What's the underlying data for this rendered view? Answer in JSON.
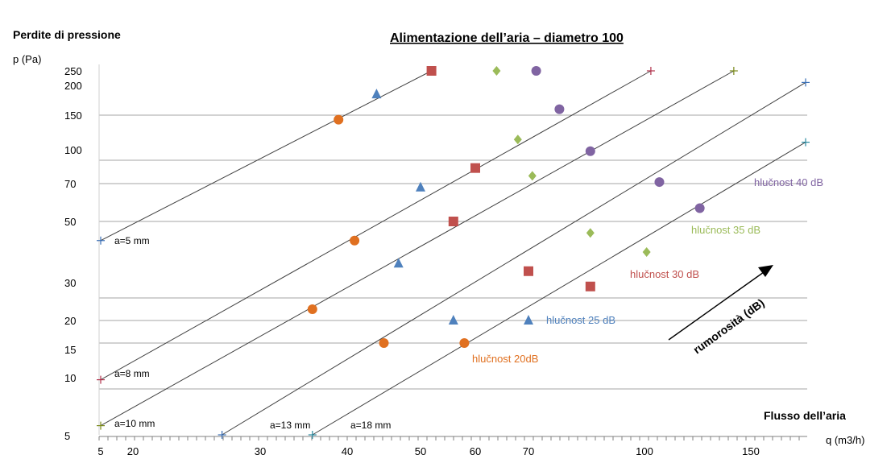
{
  "chart_data": {
    "type": "line",
    "title": "Alimentazione dell’aria – diametro 100",
    "side_title": "Perdite di pressione",
    "ylabel": "p (Pa)",
    "xlabel": "q (m3/h)",
    "x_caption": "Flusso dell’aria",
    "y_ticks": [
      "250",
      "200",
      "150",
      "100",
      "70",
      "50",
      "30",
      "20",
      "15",
      "10",
      "5"
    ],
    "x_ticks": [
      "5",
      "20",
      "30",
      "40",
      "50",
      "60",
      "70",
      "100",
      "150"
    ],
    "grid": "horizontal",
    "lines": [
      {
        "label": "a=5 mm",
        "color": "#3a6fb5",
        "start": {
          "q": 5,
          "p": 45
        },
        "end": {
          "q": 52,
          "p": 250
        }
      },
      {
        "label": "a=8 mm",
        "color": "#b0304a",
        "start": {
          "q": 5,
          "p": 11
        },
        "end": {
          "q": 103,
          "p": 250
        }
      },
      {
        "label": "a=10 mm",
        "color": "#7a8a1a",
        "start": {
          "q": 5,
          "p": 6
        },
        "end": {
          "q": 142,
          "p": 250
        }
      },
      {
        "label": "a=13 mm",
        "color": "#3a6fb5",
        "start": {
          "q": 27,
          "p": 5
        },
        "end": {
          "q": 175,
          "p": 210
        }
      },
      {
        "label": "a=18 mm",
        "color": "#2a8aa0",
        "start": {
          "q": 36,
          "p": 5
        },
        "end": {
          "q": 175,
          "p": 120
        }
      }
    ],
    "series": [
      {
        "name": "hlučnost 20dB",
        "color": "#e07020",
        "marker": "circle",
        "points": [
          {
            "q": 39,
            "p": 145
          },
          {
            "q": 41,
            "p": 45
          },
          {
            "q": 36,
            "p": 25
          },
          {
            "q": 45,
            "p": 15
          },
          {
            "q": 58,
            "p": 15
          }
        ]
      },
      {
        "name": "hlučnost 25 dB",
        "color": "#4f81bd",
        "marker": "triangle",
        "points": [
          {
            "q": 44,
            "p": 185
          },
          {
            "q": 50,
            "p": 68
          },
          {
            "q": 47,
            "p": 39
          },
          {
            "q": 56,
            "p": 20
          },
          {
            "q": 70,
            "p": 20
          }
        ]
      },
      {
        "name": "hlučnost 30 dB",
        "color": "#c0504d",
        "marker": "square",
        "points": [
          {
            "q": 52,
            "p": 250
          },
          {
            "q": 60,
            "p": 90
          },
          {
            "q": 56,
            "p": 50
          },
          {
            "q": 70,
            "p": 37
          },
          {
            "q": 86,
            "p": 33
          }
        ]
      },
      {
        "name": "hlučnost 35 dB",
        "color": "#9bbb59",
        "marker": "diamond",
        "points": [
          {
            "q": 64,
            "p": 250
          },
          {
            "q": 68,
            "p": 123
          },
          {
            "q": 71,
            "p": 80
          },
          {
            "q": 86,
            "p": 47
          },
          {
            "q": 101,
            "p": 42
          }
        ]
      },
      {
        "name": "hlučnost 40 dB",
        "color": "#8064a2",
        "marker": "circle",
        "points": [
          {
            "q": 72,
            "p": 250
          },
          {
            "q": 78,
            "p": 160
          },
          {
            "q": 86,
            "p": 110
          },
          {
            "q": 107,
            "p": 72
          },
          {
            "q": 126,
            "p": 57
          }
        ]
      }
    ],
    "annotation": "rumorosità (dB)"
  }
}
